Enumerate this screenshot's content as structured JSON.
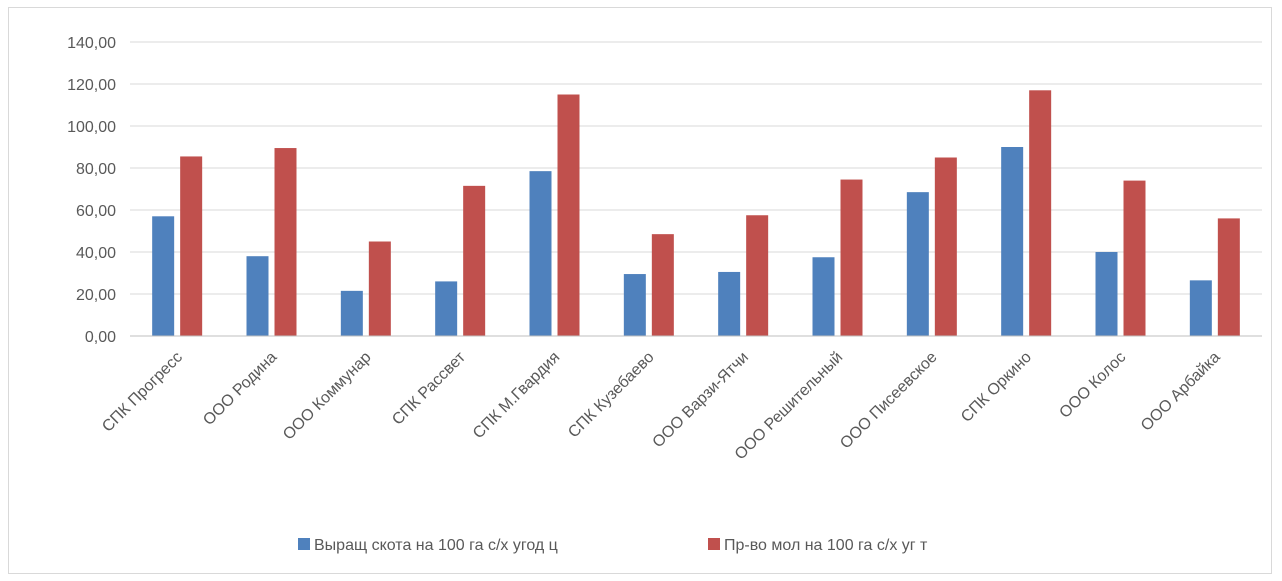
{
  "chart_data": {
    "type": "bar",
    "categories": [
      "СПК Прогресс",
      "ООО Родина",
      "ООО Коммунар",
      "СПК Рассвет",
      "СПК М.Гвардия",
      "СПК Кузебаево",
      "ООО Варзи-Ятчи",
      "ООО Решительный",
      "ООО Писеевское",
      "СПК Оркино",
      "ООО Колос",
      "ООО Арбайка"
    ],
    "series": [
      {
        "name": "Выращ скота на 100 га с/х угод  ц",
        "color": "#4f81bd",
        "values": [
          57.0,
          38.0,
          21.5,
          26.0,
          78.5,
          29.5,
          30.5,
          37.5,
          68.5,
          90.0,
          40.0,
          26.5
        ]
      },
      {
        "name": "Пр-во мол на 100 га с/х уг   т",
        "color": "#c0504d",
        "values": [
          85.5,
          89.5,
          45.0,
          71.5,
          115.0,
          48.5,
          57.5,
          74.5,
          85.0,
          117.0,
          74.0,
          56.0
        ]
      }
    ],
    "y_ticks": [
      "0,00",
      "20,00",
      "40,00",
      "60,00",
      "80,00",
      "100,00",
      "120,00",
      "140,00"
    ],
    "ylim": [
      0,
      140
    ],
    "grid": true,
    "legend_position": "bottom"
  }
}
